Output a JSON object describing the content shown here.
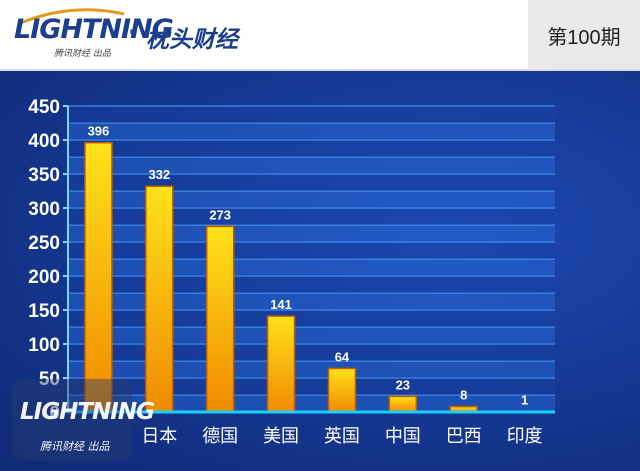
{
  "header": {
    "logo_text": "LIGHTNING",
    "logo_subtext": "腾讯财经 出品",
    "separator": "·",
    "column_name": "枕头财经",
    "issue": "第100期"
  },
  "watermark": {
    "logo_text": "LIGHTNING",
    "logo_subtext": "腾讯财经 出品"
  },
  "colors": {
    "header_brand": "#1b3f8c",
    "background": "#173a97",
    "bar_top": "#ffe21a",
    "bar_bottom": "#f08a00",
    "bar_border": "#c35c00",
    "label": "#ffffff"
  },
  "chart_data": {
    "type": "bar",
    "categories": [
      "",
      "日本",
      "德国",
      "美国",
      "英国",
      "中国",
      "巴西",
      "印度"
    ],
    "values": [
      396,
      332,
      273,
      141,
      64,
      23,
      8,
      1
    ],
    "data_labels": [
      "396",
      "332",
      "273",
      "141",
      "64",
      "23",
      "8",
      "1"
    ],
    "ylim": [
      0,
      450
    ],
    "yticks": [
      "0",
      "50",
      "100",
      "150",
      "200",
      "250",
      "300",
      "350",
      "400",
      "450"
    ],
    "title": "",
    "xlabel": "",
    "ylabel": "",
    "grid": true,
    "legend": "none"
  }
}
